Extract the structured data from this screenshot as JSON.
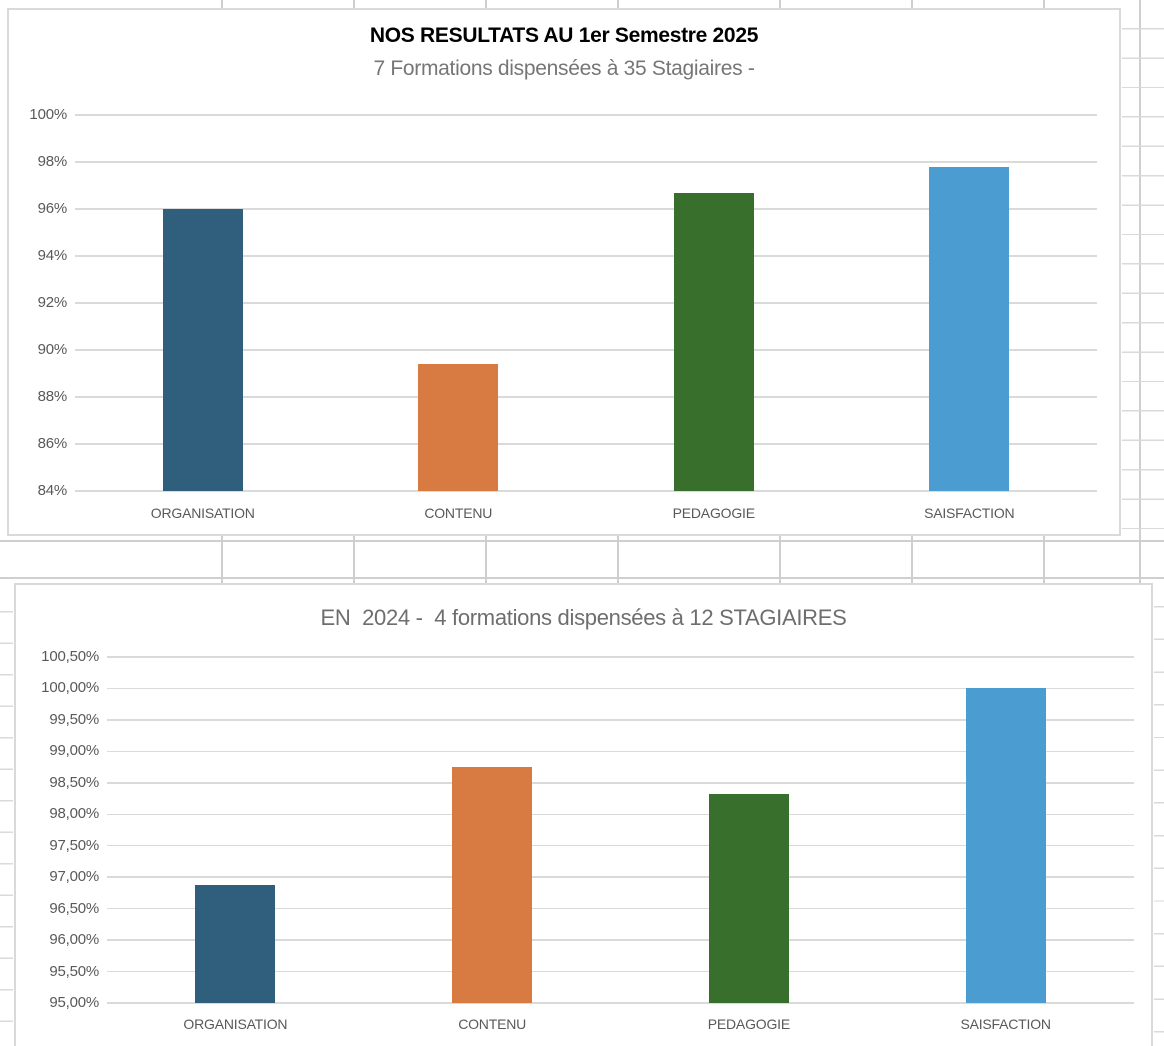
{
  "colors": {
    "bar_palette": [
      "#305F7E",
      "#D87B42",
      "#396F2D",
      "#4B9CD1"
    ],
    "chart_gridline": "#DADADA",
    "axis_label": "#595959",
    "title_primary": "#000000",
    "subtitle_gray": "#767676",
    "title_secondary_gray": "#6E6E6E",
    "panel_border": "#D9D9D9",
    "sheet_gridline": "#CFCFCF"
  },
  "chart_data": [
    {
      "type": "bar",
      "title": "NOS RESULTATS AU 1er Semestre 2025",
      "subtitle": "7 Formations dispensées à 35 Stagiaires -",
      "categories": [
        "ORGANISATION",
        "CONTENU",
        "PEDAGOGIE",
        "SAISFACTION"
      ],
      "values": [
        96.0,
        89.4,
        96.7,
        97.8
      ],
      "unit": "%",
      "ylim": [
        84,
        100
      ],
      "ytick_step": 2,
      "ytick_labels": [
        "84%",
        "86%",
        "88%",
        "90%",
        "92%",
        "94%",
        "96%",
        "98%",
        "100%"
      ],
      "bar_colors": [
        "#305F7E",
        "#D87B42",
        "#396F2D",
        "#4B9CD1"
      ],
      "grid": true,
      "legend": "none"
    },
    {
      "type": "bar",
      "title": "EN  2024 -  4 formations dispensées à 12 STAGIAIRES",
      "subtitle": "",
      "categories": [
        "ORGANISATION",
        "CONTENU",
        "PEDAGOGIE",
        "SAISFACTION"
      ],
      "values": [
        96.87,
        98.75,
        98.33,
        100.0
      ],
      "unit": "%",
      "ylim": [
        95,
        100.5
      ],
      "ytick_step": 0.5,
      "ytick_labels": [
        "95,00%",
        "95,50%",
        "96,00%",
        "96,50%",
        "97,00%",
        "97,50%",
        "98,00%",
        "98,50%",
        "99,00%",
        "99,50%",
        "100,00%",
        "100,50%"
      ],
      "bar_colors": [
        "#305F7E",
        "#D87B42",
        "#396F2D",
        "#4B9CD1"
      ],
      "grid": true,
      "legend": "none"
    }
  ]
}
